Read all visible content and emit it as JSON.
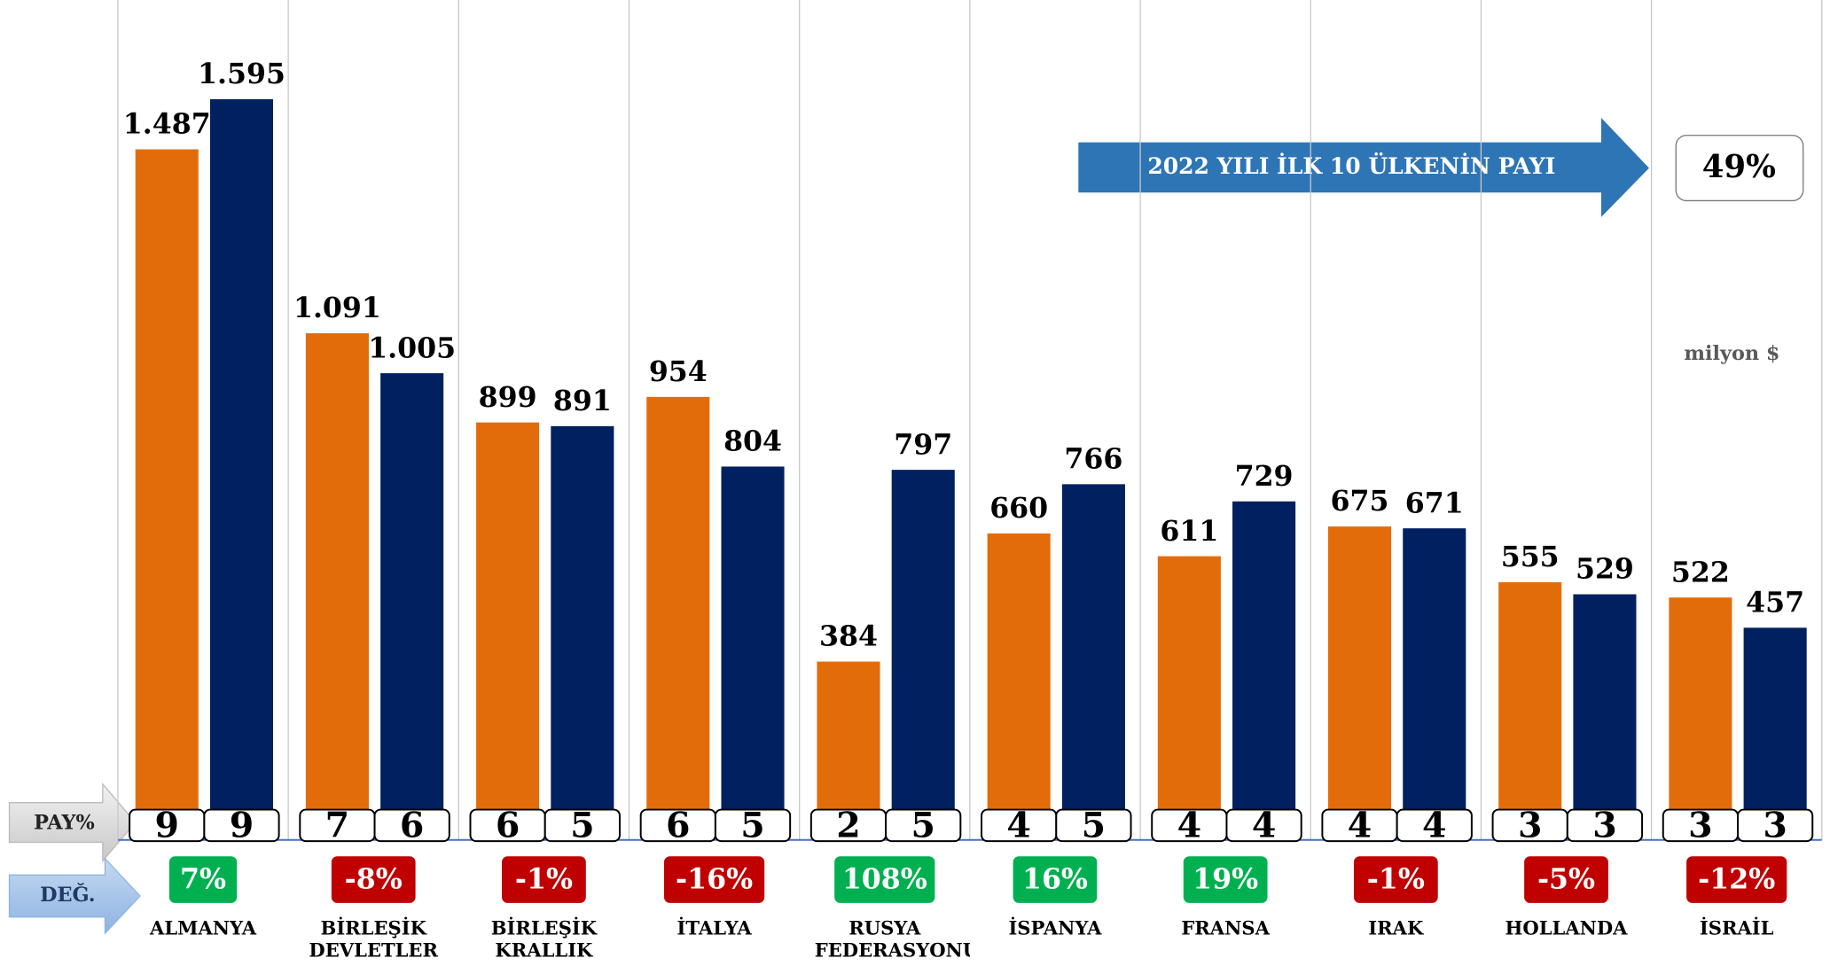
{
  "chart_data": {
    "type": "bar",
    "categories": [
      "ALMANYA",
      "BİRLEŞİK DEVLETLER",
      "BİRLEŞİK KRALLIK",
      "İTALYA",
      "RUSYA FEDERASYONU",
      "İSPANYA",
      "FRANSA",
      "IRAK",
      "HOLLANDA",
      "İSRAİL"
    ],
    "series": [
      {
        "color": "#e36c0a",
        "values": [
          1487,
          1091,
          899,
          954,
          384,
          660,
          611,
          675,
          555,
          522
        ],
        "value_labels": [
          "1.487",
          "1.091",
          "899",
          "954",
          "384",
          "660",
          "611",
          "675",
          "555",
          "522"
        ],
        "share": [
          9,
          7,
          6,
          6,
          2,
          4,
          4,
          4,
          3,
          3
        ]
      },
      {
        "color": "#002060",
        "values": [
          1595,
          1005,
          891,
          804,
          797,
          766,
          729,
          671,
          529,
          457
        ],
        "value_labels": [
          "1.595",
          "1.005",
          "891",
          "804",
          "797",
          "766",
          "729",
          "671",
          "529",
          "457"
        ],
        "share": [
          9,
          6,
          5,
          5,
          5,
          5,
          4,
          4,
          3,
          3
        ]
      }
    ],
    "change": {
      "label": "DEĞ.",
      "values": [
        7,
        -8,
        -1,
        -16,
        108,
        16,
        19,
        -1,
        -5,
        -12
      ],
      "value_labels": [
        "7%",
        "-8%",
        "-1%",
        "-16%",
        "108%",
        "16%",
        "19%",
        "-1%",
        "-5%",
        "-12%"
      ],
      "positive_color": "#00b050",
      "negative_color": "#c00000"
    },
    "share_label": "PAY%",
    "annotation": {
      "text": "2022 YILI İLK 10 ÜLKENİN PAYI",
      "value": 49,
      "label": "49%"
    },
    "unit": "milyon $"
  }
}
